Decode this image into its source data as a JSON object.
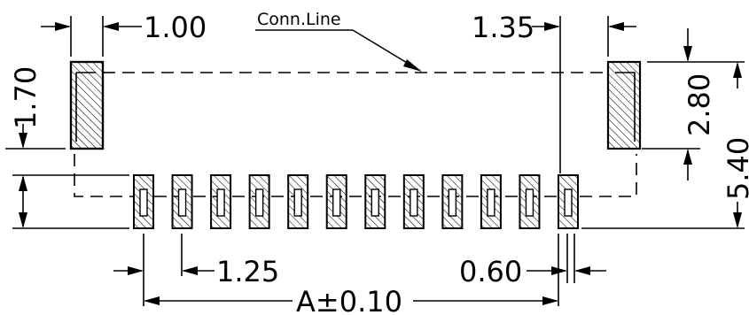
{
  "labels": {
    "conn_line": "Conn.Line"
  },
  "dimensions": {
    "mount_pad_width": "1.00",
    "conn_line_offset": "1.35",
    "mount_pad_height": "2.80",
    "overall_height": "5.40",
    "pad_to_top": "1.70",
    "pitch": "1.25",
    "pad_width": "0.60",
    "overall_length": "A±0.10"
  },
  "pad_count": 12
}
